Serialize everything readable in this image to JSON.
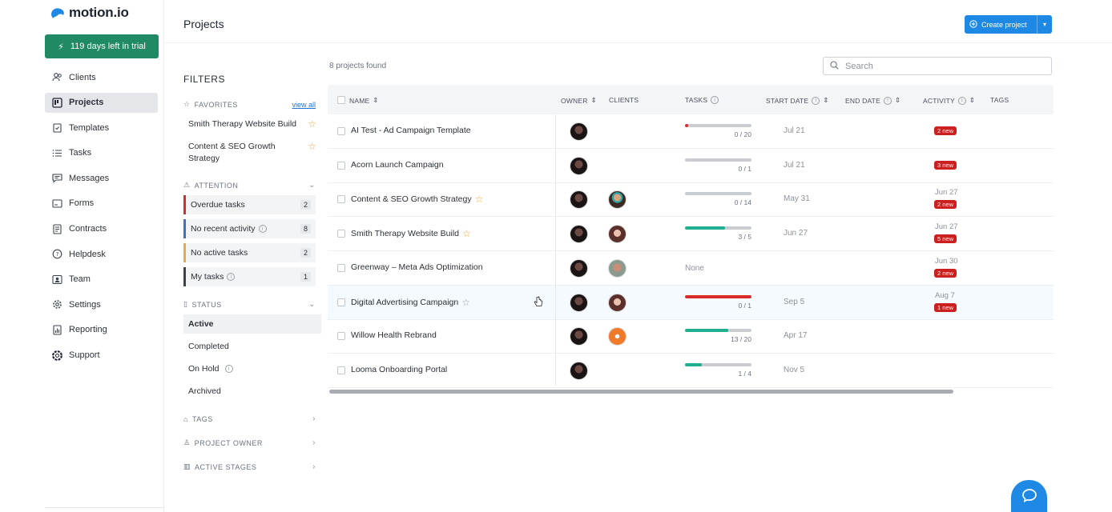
{
  "brand": {
    "name": "motion.io"
  },
  "trial": {
    "label": "119 days left in trial",
    "color": "#1f8a63"
  },
  "nav": [
    {
      "label": "Clients",
      "icon": "users-icon",
      "active": false
    },
    {
      "label": "Projects",
      "icon": "projects-icon",
      "active": true
    },
    {
      "label": "Templates",
      "icon": "clipboard-icon",
      "active": false
    },
    {
      "label": "Tasks",
      "icon": "list-icon",
      "active": false
    },
    {
      "label": "Messages",
      "icon": "chat-icon",
      "active": false
    },
    {
      "label": "Forms",
      "icon": "form-icon",
      "active": false
    },
    {
      "label": "Contracts",
      "icon": "contract-icon",
      "active": false
    },
    {
      "label": "Helpdesk",
      "icon": "help-icon",
      "active": false
    },
    {
      "label": "Team",
      "icon": "team-icon",
      "active": false
    },
    {
      "label": "Settings",
      "icon": "gear-icon",
      "active": false
    },
    {
      "label": "Reporting",
      "icon": "chart-icon",
      "active": false
    },
    {
      "label": "Support",
      "icon": "lifebuoy-icon",
      "active": false
    }
  ],
  "header": {
    "title": "Projects",
    "create_label": "Create project"
  },
  "filters": {
    "title": "FILTERS",
    "favorites": {
      "label": "FAVORITES",
      "view_all": "view all",
      "items": [
        "Smith Therapy Website Build",
        "Content & SEO Growth Strategy"
      ]
    },
    "attention": {
      "label": "ATTENTION",
      "items": [
        {
          "label": "Overdue tasks",
          "count": "2",
          "color": "#d92b2b"
        },
        {
          "label": "No recent activity",
          "count": "8",
          "color": "#3a6fd8"
        },
        {
          "label": "No active tasks",
          "count": "2",
          "color": "#f0a83b"
        },
        {
          "label": "My tasks",
          "count": "1",
          "color": "#3b4350"
        }
      ]
    },
    "status": {
      "label": "STATUS",
      "items": [
        "Active",
        "Completed",
        "On Hold",
        "Archived"
      ]
    },
    "tags_label": "TAGS",
    "owner_label": "PROJECT OWNER",
    "stages_label": "ACTIVE STAGES"
  },
  "main": {
    "found": "8 projects found",
    "search_placeholder": "Search",
    "columns": {
      "name": "NAME",
      "owner": "OWNER",
      "clients": "CLIENTS",
      "tasks": "TASKS",
      "start": "START DATE",
      "end": "END DATE",
      "activity": "ACTIVITY",
      "tags": "TAGS"
    },
    "rows": [
      {
        "name": "AI Test - Ad Campaign Template",
        "star": "",
        "client": "",
        "tasks": "0 / 20",
        "progress": 0.05,
        "bar_color": "#d92b2b",
        "start": "Jul 21",
        "act_date": "",
        "badge": "2 new"
      },
      {
        "name": "Acorn Launch Campaign",
        "star": "",
        "client": "",
        "tasks": "0 / 1",
        "progress": 0,
        "bar_color": "#c9ccd1",
        "start": "Jul 21",
        "act_date": "",
        "badge": "3 new"
      },
      {
        "name": "Content & SEO Growth Strategy",
        "star": "fav",
        "client": "c1",
        "tasks": "0 / 14",
        "progress": 0,
        "bar_color": "#c9ccd1",
        "start": "May 31",
        "act_date": "Jun 27",
        "badge": "2 new"
      },
      {
        "name": "Smith Therapy Website Build",
        "star": "fav",
        "client": "c2",
        "tasks": "3 / 5",
        "progress": 0.6,
        "bar_color": "#1fae90",
        "start": "Jun 27",
        "act_date": "Jun 27",
        "badge": "5 new"
      },
      {
        "name": "Greenway – Meta Ads Optimization",
        "star": "",
        "client": "c3",
        "tasks": "None",
        "progress": null,
        "bar_color": "",
        "start": "",
        "act_date": "Jun 30",
        "badge": "2 new"
      },
      {
        "name": "Digital Advertising Campaign",
        "star": "outline",
        "client": "c2",
        "tasks": "0 / 1",
        "progress": 1,
        "bar_color": "#d92b2b",
        "start": "Sep 5",
        "act_date": "Aug 7",
        "badge": "1 new"
      },
      {
        "name": "Willow Health Rebrand",
        "star": "",
        "client": "c4",
        "tasks": "13 / 20",
        "progress": 0.65,
        "bar_color": "#1fae90",
        "start": "Apr 17",
        "act_date": "",
        "badge": ""
      },
      {
        "name": "Looma Onboarding Portal",
        "star": "",
        "client": "",
        "tasks": "1 / 4",
        "progress": 0.25,
        "bar_color": "#1fae90",
        "start": "Nov 5",
        "act_date": "",
        "badge": ""
      }
    ]
  },
  "colors": {
    "accent": "#1e88e5",
    "badge": "#cc1f1f"
  }
}
